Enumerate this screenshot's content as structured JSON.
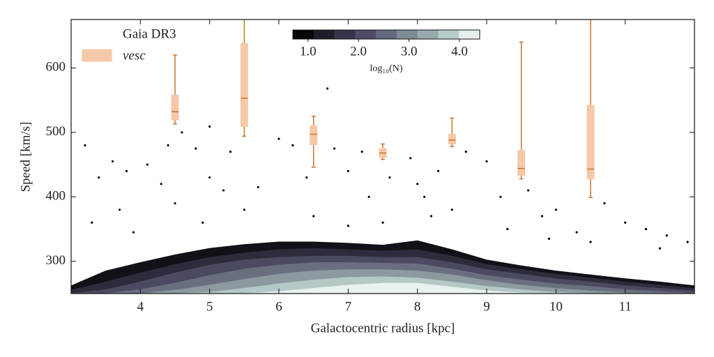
{
  "chart_data": {
    "type": "density-box",
    "xlabel": "Galactocentric radius [kpc]",
    "ylabel": "Speed [km/s]",
    "xlim": [
      3,
      12
    ],
    "ylim": [
      250,
      675
    ],
    "xticks": [
      4,
      5,
      6,
      7,
      8,
      9,
      10,
      11
    ],
    "yticks": [
      300,
      400,
      500,
      600
    ],
    "legend": "upper left",
    "density": {
      "name": "Gaia DR3",
      "x": [
        3,
        3.5,
        4,
        4.5,
        5,
        5.5,
        6,
        6.5,
        7,
        7.5,
        8,
        8.5,
        9,
        9.5,
        10,
        10.5,
        11,
        11.5,
        12
      ],
      "levels": [
        {
          "color": "#111118",
          "values": [
            262,
            285,
            298,
            310,
            320,
            326,
            330,
            330,
            328,
            325,
            332,
            318,
            302,
            293,
            285,
            279,
            273,
            268,
            262
          ]
        },
        {
          "color": "#2c2c3c",
          "values": [
            255,
            268,
            282,
            295,
            306,
            313,
            318,
            320,
            318,
            316,
            318,
            308,
            295,
            287,
            280,
            274,
            268,
            263,
            258
          ]
        },
        {
          "color": "#4a4a60",
          "values": [
            250,
            256,
            268,
            282,
            294,
            302,
            306,
            308,
            308,
            306,
            306,
            298,
            287,
            280,
            273,
            268,
            262,
            258,
            254
          ]
        },
        {
          "color": "#6a6f80",
          "values": [
            250,
            250,
            256,
            266,
            278,
            288,
            294,
            298,
            298,
            297,
            296,
            288,
            278,
            271,
            265,
            261,
            256,
            253,
            250
          ]
        },
        {
          "color": "#8c9aa0",
          "values": [
            250,
            250,
            250,
            255,
            263,
            272,
            280,
            285,
            287,
            287,
            285,
            279,
            270,
            263,
            258,
            254,
            251,
            250,
            250
          ]
        },
        {
          "color": "#b5c8c5",
          "values": [
            250,
            250,
            250,
            250,
            252,
            258,
            265,
            271,
            275,
            276,
            274,
            268,
            261,
            256,
            252,
            250,
            250,
            250,
            250
          ]
        },
        {
          "color": "#e8f2f0",
          "values": [
            250,
            250,
            250,
            250,
            250,
            250,
            253,
            258,
            263,
            266,
            266,
            260,
            254,
            251,
            250,
            250,
            250,
            250,
            250
          ]
        }
      ]
    },
    "scatter": {
      "color": "#000000",
      "x": [
        3.2,
        3.4,
        3.6,
        3.8,
        4.1,
        4.3,
        4.4,
        4.6,
        4.8,
        5.0,
        5.2,
        5.3,
        5.7,
        6.0,
        6.2,
        6.4,
        6.7,
        6.8,
        7.0,
        7.3,
        7.6,
        7.9,
        8.0,
        8.1,
        8.3,
        8.7,
        9.0,
        9.2,
        9.6,
        9.8,
        10.0,
        10.3,
        10.7,
        11.0,
        11.3,
        11.6,
        11.9,
        3.3,
        3.7,
        4.5,
        5.5,
        6.5,
        7.5,
        8.5,
        9.3,
        10.5,
        11.5,
        3.9,
        4.9,
        7.0,
        8.2,
        9.9,
        5.0,
        7.2
      ],
      "y": [
        480,
        430,
        455,
        440,
        450,
        420,
        480,
        500,
        475,
        430,
        410,
        470,
        415,
        490,
        480,
        430,
        568,
        475,
        440,
        400,
        430,
        460,
        420,
        400,
        440,
        470,
        455,
        400,
        410,
        370,
        380,
        345,
        390,
        360,
        350,
        340,
        330,
        360,
        380,
        390,
        380,
        370,
        360,
        380,
        350,
        330,
        320,
        345,
        360,
        355,
        370,
        335,
        509,
        470
      ]
    },
    "boxes": {
      "name": "vesc",
      "color": "#f5c8a8",
      "edgecolor": "#c8742e",
      "positions": [
        4.5,
        5.5,
        6.5,
        7.5,
        8.5,
        9.5,
        10.5
      ],
      "whislo": [
        513,
        494,
        446,
        458,
        478,
        428,
        399
      ],
      "q1": [
        519,
        509,
        481,
        461,
        482,
        433,
        428
      ],
      "med": [
        532,
        553,
        497,
        468,
        488,
        444,
        443
      ],
      "q3": [
        558,
        638,
        510,
        475,
        497,
        472,
        542
      ],
      "whishi": [
        620,
        700,
        525,
        482,
        522,
        640,
        700
      ]
    },
    "colorbar": {
      "lim": [
        0.7,
        4.4
      ],
      "ticks": [
        {
          "value": 1,
          "label": "1.0"
        },
        {
          "value": 2,
          "label": "2.0"
        },
        {
          "value": 3,
          "label": "3.0"
        },
        {
          "value": 4,
          "label": "4.0"
        }
      ],
      "colors": [
        "#08080c",
        "#1e1e2a",
        "#35354a",
        "#4c4c66",
        "#64697e",
        "#7e8c94",
        "#98aaac",
        "#b8cccb",
        "#e6eeee"
      ],
      "label": "log₁₀(N)"
    }
  }
}
